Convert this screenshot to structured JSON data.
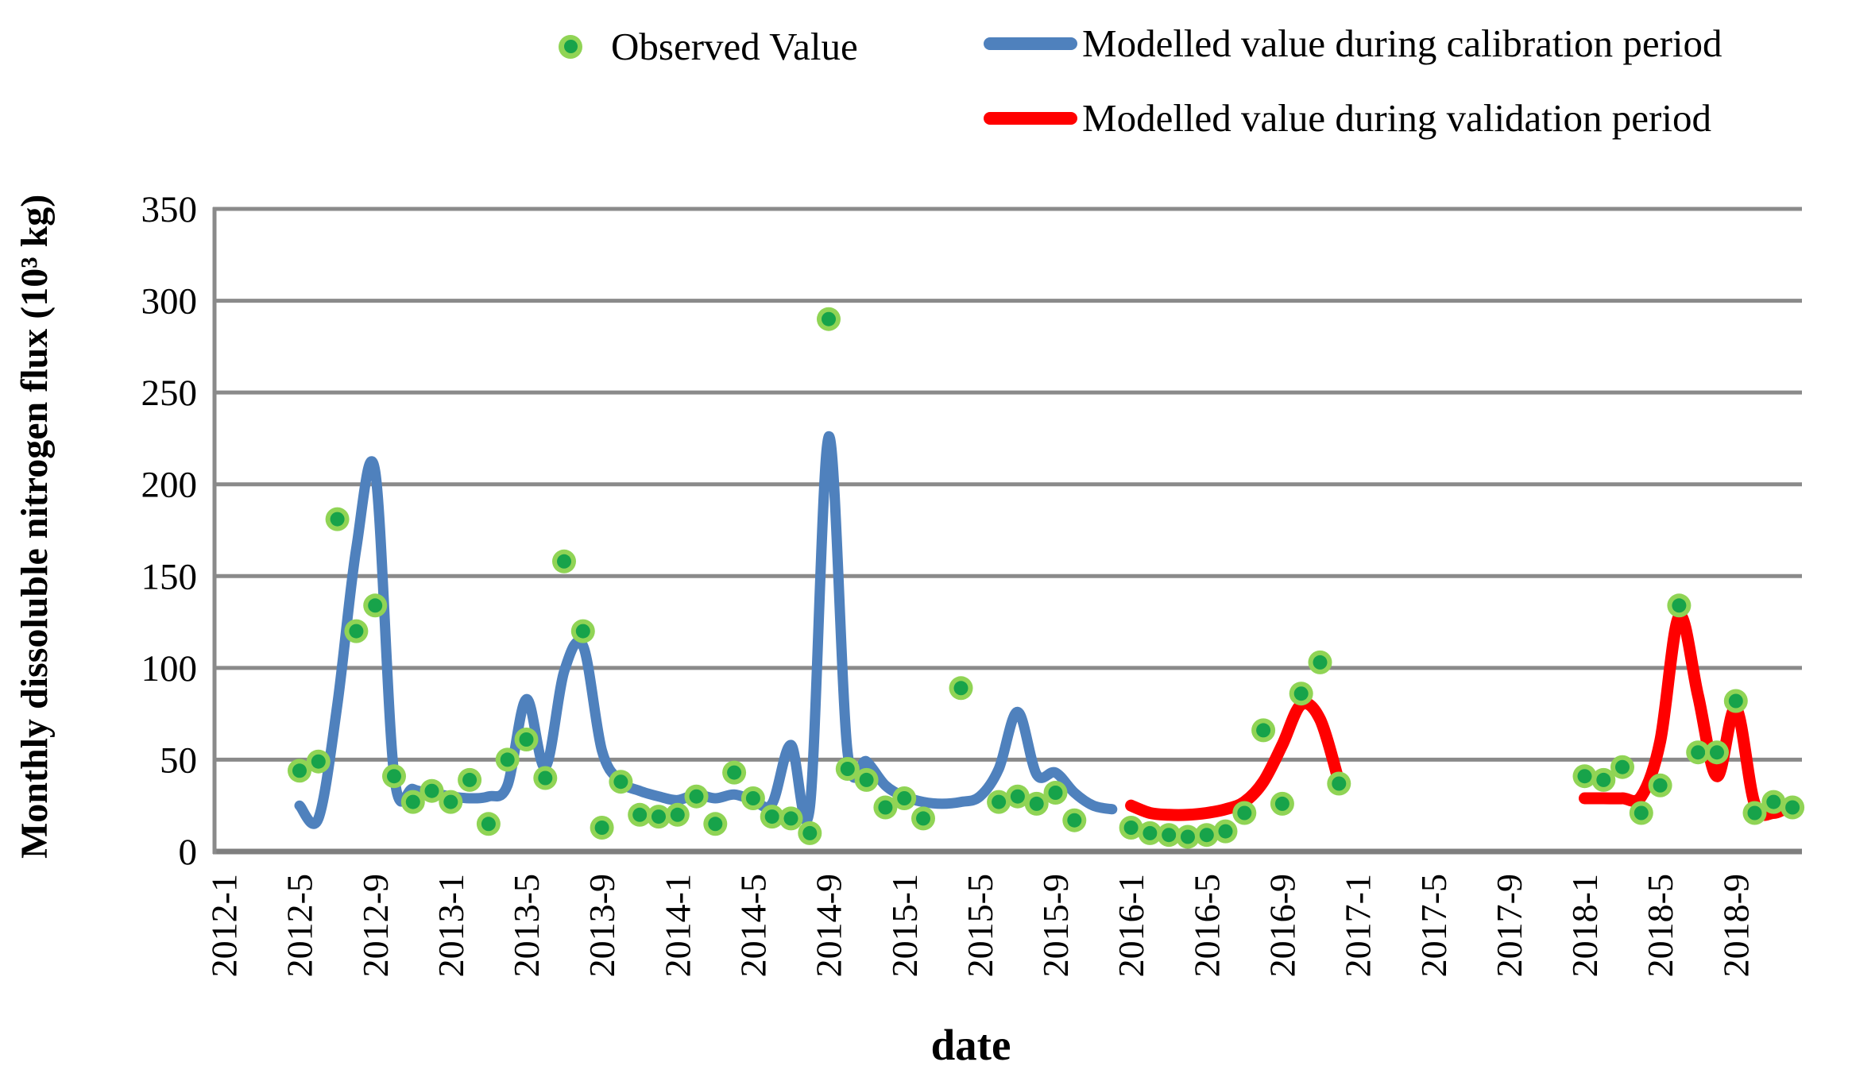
{
  "chart_data": {
    "type": "line",
    "title": "",
    "xlabel": "date",
    "ylabel": "Monthly dissoluble nitrogen flux (10³ kg)",
    "ylim": [
      0,
      350
    ],
    "y_ticks": [
      0,
      50,
      100,
      150,
      200,
      250,
      300,
      350
    ],
    "x_ticks": [
      "2012-1",
      "2012-5",
      "2012-9",
      "2013-1",
      "2013-5",
      "2013-9",
      "2014-1",
      "2014-5",
      "2014-9",
      "2015-1",
      "2015-5",
      "2015-9",
      "2016-1",
      "2016-5",
      "2016-9",
      "2017-1",
      "2017-5",
      "2017-9",
      "2018-1",
      "2018-5",
      "2018-9"
    ],
    "x_domain": {
      "start": "2012-1",
      "end": "2018-12",
      "unit": "month"
    },
    "grid": "horizontal-only",
    "legend_position": "top",
    "colors": {
      "grid": "#8A8A8A",
      "axis": "#7F7F7F",
      "calibration": "#4F81BD",
      "validation": "#FF0000",
      "observed_outer": "#90D455",
      "observed_inner": "#17A34A"
    },
    "point_format": [
      "date",
      "value"
    ],
    "series": [
      {
        "name": "Observed Value",
        "type": "scatter",
        "points": [
          [
            "2012-5",
            44
          ],
          [
            "2012-6",
            49
          ],
          [
            "2012-7",
            181
          ],
          [
            "2012-8",
            120
          ],
          [
            "2012-9",
            134
          ],
          [
            "2012-10",
            41
          ],
          [
            "2012-11",
            27
          ],
          [
            "2012-12",
            33
          ],
          [
            "2013-1",
            27
          ],
          [
            "2013-2",
            39
          ],
          [
            "2013-3",
            15
          ],
          [
            "2013-4",
            50
          ],
          [
            "2013-5",
            61
          ],
          [
            "2013-6",
            40
          ],
          [
            "2013-7",
            158
          ],
          [
            "2013-8",
            120
          ],
          [
            "2013-9",
            13
          ],
          [
            "2013-10",
            38
          ],
          [
            "2013-11",
            20
          ],
          [
            "2013-12",
            19
          ],
          [
            "2014-1",
            20
          ],
          [
            "2014-2",
            30
          ],
          [
            "2014-3",
            15
          ],
          [
            "2014-4",
            43
          ],
          [
            "2014-5",
            29
          ],
          [
            "2014-6",
            19
          ],
          [
            "2014-7",
            18
          ],
          [
            "2014-8",
            10
          ],
          [
            "2014-9",
            290
          ],
          [
            "2014-10",
            45
          ],
          [
            "2014-11",
            39
          ],
          [
            "2014-12",
            24
          ],
          [
            "2015-1",
            29
          ],
          [
            "2015-2",
            18
          ],
          [
            "2015-4",
            89
          ],
          [
            "2015-6",
            27
          ],
          [
            "2015-7",
            30
          ],
          [
            "2015-8",
            26
          ],
          [
            "2015-9",
            32
          ],
          [
            "2015-10",
            17
          ],
          [
            "2016-1",
            13
          ],
          [
            "2016-2",
            10
          ],
          [
            "2016-3",
            9
          ],
          [
            "2016-4",
            8
          ],
          [
            "2016-5",
            9
          ],
          [
            "2016-6",
            11
          ],
          [
            "2016-7",
            21
          ],
          [
            "2016-8",
            66
          ],
          [
            "2016-9",
            26
          ],
          [
            "2016-10",
            86
          ],
          [
            "2016-11",
            103
          ],
          [
            "2016-12",
            37
          ],
          [
            "2018-1",
            41
          ],
          [
            "2018-2",
            39
          ],
          [
            "2018-3",
            46
          ],
          [
            "2018-4",
            21
          ],
          [
            "2018-5",
            36
          ],
          [
            "2018-6",
            134
          ],
          [
            "2018-7",
            54
          ],
          [
            "2018-8",
            54
          ],
          [
            "2018-9",
            82
          ],
          [
            "2018-10",
            21
          ],
          [
            "2018-11",
            27
          ],
          [
            "2018-12",
            24
          ]
        ]
      },
      {
        "name": "Modelled value during calibration period",
        "type": "line",
        "points": [
          [
            "2012-5",
            25
          ],
          [
            "2012-6",
            18
          ],
          [
            "2012-7",
            80
          ],
          [
            "2012-8",
            165
          ],
          [
            "2012-9",
            207
          ],
          [
            "2012-10",
            42
          ],
          [
            "2012-11",
            34
          ],
          [
            "2012-12",
            32
          ],
          [
            "2013-1",
            30
          ],
          [
            "2013-2",
            29
          ],
          [
            "2013-3",
            30
          ],
          [
            "2013-4",
            36
          ],
          [
            "2013-5",
            83
          ],
          [
            "2013-6",
            46
          ],
          [
            "2013-7",
            98
          ],
          [
            "2013-8",
            112
          ],
          [
            "2013-9",
            55
          ],
          [
            "2013-10",
            38
          ],
          [
            "2013-11",
            33
          ],
          [
            "2013-12",
            30
          ],
          [
            "2014-1",
            28
          ],
          [
            "2014-2",
            31
          ],
          [
            "2014-3",
            29
          ],
          [
            "2014-4",
            31
          ],
          [
            "2014-5",
            28
          ],
          [
            "2014-6",
            26
          ],
          [
            "2014-7",
            58
          ],
          [
            "2014-8",
            24
          ],
          [
            "2014-9",
            226
          ],
          [
            "2014-10",
            54
          ],
          [
            "2014-11",
            49
          ],
          [
            "2014-12",
            36
          ],
          [
            "2015-1",
            30
          ],
          [
            "2015-2",
            27
          ],
          [
            "2015-3",
            26
          ],
          [
            "2015-4",
            27
          ],
          [
            "2015-5",
            30
          ],
          [
            "2015-6",
            45
          ],
          [
            "2015-7",
            76
          ],
          [
            "2015-8",
            42
          ],
          [
            "2015-9",
            43
          ],
          [
            "2015-10",
            32
          ],
          [
            "2015-11",
            25
          ],
          [
            "2015-12",
            23
          ]
        ]
      },
      {
        "name": "Modelled value during validation period",
        "type": "line",
        "segments": [
          [
            [
              "2016-1",
              25
            ],
            [
              "2016-2",
              21
            ],
            [
              "2016-3",
              20
            ],
            [
              "2016-4",
              20
            ],
            [
              "2016-5",
              21
            ],
            [
              "2016-6",
              23
            ],
            [
              "2016-7",
              27
            ],
            [
              "2016-8",
              38
            ],
            [
              "2016-9",
              58
            ],
            [
              "2016-10",
              80
            ],
            [
              "2016-11",
              72
            ],
            [
              "2016-12",
              38
            ]
          ],
          [
            [
              "2018-1",
              29
            ],
            [
              "2018-2",
              29
            ],
            [
              "2018-3",
              29
            ],
            [
              "2018-4",
              30
            ],
            [
              "2018-5",
              60
            ],
            [
              "2018-6",
              128
            ],
            [
              "2018-7",
              85
            ],
            [
              "2018-8",
              41
            ],
            [
              "2018-9",
              78
            ],
            [
              "2018-10",
              26
            ],
            [
              "2018-11",
              21
            ],
            [
              "2018-12",
              26
            ]
          ]
        ]
      }
    ]
  }
}
